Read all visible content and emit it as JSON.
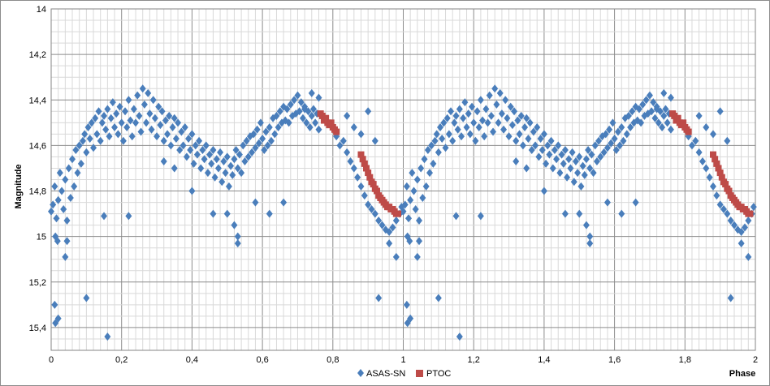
{
  "chart_data": {
    "type": "scatter",
    "title": "",
    "xlabel": "Phase",
    "ylabel": "Magnitude",
    "xlim": [
      0,
      2
    ],
    "ylim": [
      14,
      15.5
    ],
    "y_inverted": true,
    "grid": true,
    "x_ticks": [
      0,
      0.2,
      0.4,
      0.6,
      0.8,
      1,
      1.2,
      1.4,
      1.6,
      1.8,
      2
    ],
    "x_tick_labels": [
      "0",
      "0,2",
      "0,4",
      "0,6",
      "0,8",
      "1",
      "1,2",
      "1,4",
      "1,6",
      "1,8",
      "2"
    ],
    "y_ticks": [
      14,
      14.2,
      14.4,
      14.6,
      14.8,
      15,
      15.2,
      15.4
    ],
    "y_tick_labels": [
      "14",
      "14,2",
      "14,4",
      "14,6",
      "14,8",
      "15",
      "15,2",
      "15,4"
    ],
    "legend_position": "bottom-right",
    "series": [
      {
        "name": "ASAS-SN",
        "marker": "diamond",
        "color": "#4a7ebb",
        "points": [
          [
            0.0,
            14.89
          ],
          [
            0.005,
            14.86
          ],
          [
            0.01,
            14.78
          ],
          [
            0.012,
            15.0
          ],
          [
            0.015,
            14.92
          ],
          [
            0.018,
            15.02
          ],
          [
            0.02,
            14.84
          ],
          [
            0.025,
            14.72
          ],
          [
            0.03,
            14.8
          ],
          [
            0.035,
            14.88
          ],
          [
            0.04,
            14.75
          ],
          [
            0.045,
            14.93
          ],
          [
            0.05,
            14.7
          ],
          [
            0.055,
            14.83
          ],
          [
            0.06,
            14.66
          ],
          [
            0.065,
            14.78
          ],
          [
            0.07,
            14.62
          ],
          [
            0.075,
            14.72
          ],
          [
            0.08,
            14.6
          ],
          [
            0.085,
            14.68
          ],
          [
            0.09,
            14.58
          ],
          [
            0.095,
            14.55
          ],
          [
            0.1,
            14.63
          ],
          [
            0.105,
            14.52
          ],
          [
            0.11,
            14.57
          ],
          [
            0.115,
            14.5
          ],
          [
            0.12,
            14.61
          ],
          [
            0.125,
            14.48
          ],
          [
            0.13,
            14.55
          ],
          [
            0.135,
            14.45
          ],
          [
            0.14,
            14.58
          ],
          [
            0.145,
            14.5
          ],
          [
            0.15,
            14.47
          ],
          [
            0.155,
            14.53
          ],
          [
            0.16,
            14.44
          ],
          [
            0.165,
            14.56
          ],
          [
            0.17,
            14.48
          ],
          [
            0.175,
            14.41
          ],
          [
            0.18,
            14.52
          ],
          [
            0.185,
            14.46
          ],
          [
            0.19,
            14.55
          ],
          [
            0.195,
            14.43
          ],
          [
            0.2,
            14.5
          ],
          [
            0.205,
            14.58
          ],
          [
            0.21,
            14.45
          ],
          [
            0.215,
            14.52
          ],
          [
            0.22,
            14.4
          ],
          [
            0.225,
            14.49
          ],
          [
            0.23,
            14.56
          ],
          [
            0.235,
            14.44
          ],
          [
            0.24,
            14.5
          ],
          [
            0.245,
            14.38
          ],
          [
            0.25,
            14.47
          ],
          [
            0.255,
            14.54
          ],
          [
            0.26,
            14.35
          ],
          [
            0.265,
            14.42
          ],
          [
            0.27,
            14.5
          ],
          [
            0.275,
            14.37
          ],
          [
            0.28,
            14.46
          ],
          [
            0.285,
            14.53
          ],
          [
            0.29,
            14.4
          ],
          [
            0.295,
            14.48
          ],
          [
            0.3,
            14.56
          ],
          [
            0.305,
            14.43
          ],
          [
            0.31,
            14.51
          ],
          [
            0.315,
            14.45
          ],
          [
            0.32,
            14.58
          ],
          [
            0.325,
            14.49
          ],
          [
            0.33,
            14.55
          ],
          [
            0.335,
            14.47
          ],
          [
            0.34,
            14.6
          ],
          [
            0.345,
            14.52
          ],
          [
            0.35,
            14.48
          ],
          [
            0.355,
            14.57
          ],
          [
            0.36,
            14.5
          ],
          [
            0.365,
            14.62
          ],
          [
            0.37,
            14.54
          ],
          [
            0.375,
            14.6
          ],
          [
            0.38,
            14.52
          ],
          [
            0.385,
            14.65
          ],
          [
            0.39,
            14.57
          ],
          [
            0.395,
            14.62
          ],
          [
            0.4,
            14.55
          ],
          [
            0.405,
            14.68
          ],
          [
            0.41,
            14.6
          ],
          [
            0.415,
            14.64
          ],
          [
            0.42,
            14.58
          ],
          [
            0.425,
            14.7
          ],
          [
            0.43,
            14.62
          ],
          [
            0.435,
            14.66
          ],
          [
            0.44,
            14.6
          ],
          [
            0.445,
            14.72
          ],
          [
            0.45,
            14.64
          ],
          [
            0.455,
            14.68
          ],
          [
            0.46,
            14.62
          ],
          [
            0.465,
            14.74
          ],
          [
            0.47,
            14.66
          ],
          [
            0.475,
            14.7
          ],
          [
            0.48,
            14.63
          ],
          [
            0.485,
            14.76
          ],
          [
            0.49,
            14.67
          ],
          [
            0.495,
            14.72
          ],
          [
            0.5,
            14.65
          ],
          [
            0.505,
            14.78
          ],
          [
            0.51,
            14.69
          ],
          [
            0.515,
            14.73
          ],
          [
            0.52,
            14.66
          ],
          [
            0.525,
            14.62
          ],
          [
            0.53,
            14.7
          ],
          [
            0.535,
            14.64
          ],
          [
            0.54,
            14.72
          ],
          [
            0.545,
            14.6
          ],
          [
            0.55,
            14.67
          ],
          [
            0.555,
            14.58
          ],
          [
            0.56,
            14.65
          ],
          [
            0.565,
            14.56
          ],
          [
            0.57,
            14.63
          ],
          [
            0.575,
            14.55
          ],
          [
            0.58,
            14.61
          ],
          [
            0.585,
            14.53
          ],
          [
            0.59,
            14.59
          ],
          [
            0.595,
            14.5
          ],
          [
            0.6,
            14.57
          ],
          [
            0.605,
            14.62
          ],
          [
            0.61,
            14.54
          ],
          [
            0.615,
            14.6
          ],
          [
            0.62,
            14.52
          ],
          [
            0.625,
            14.58
          ],
          [
            0.63,
            14.48
          ],
          [
            0.635,
            14.55
          ],
          [
            0.64,
            14.47
          ],
          [
            0.645,
            14.52
          ],
          [
            0.65,
            14.45
          ],
          [
            0.655,
            14.5
          ],
          [
            0.66,
            14.43
          ],
          [
            0.665,
            14.49
          ],
          [
            0.67,
            14.44
          ],
          [
            0.675,
            14.5
          ],
          [
            0.68,
            14.42
          ],
          [
            0.685,
            14.47
          ],
          [
            0.69,
            14.4
          ],
          [
            0.695,
            14.46
          ],
          [
            0.7,
            14.38
          ],
          [
            0.705,
            14.45
          ],
          [
            0.71,
            14.41
          ],
          [
            0.715,
            14.48
          ],
          [
            0.72,
            14.43
          ],
          [
            0.725,
            14.5
          ],
          [
            0.73,
            14.45
          ],
          [
            0.735,
            14.52
          ],
          [
            0.74,
            14.47
          ],
          [
            0.745,
            14.44
          ],
          [
            0.75,
            14.5
          ],
          [
            0.755,
            14.46
          ],
          [
            0.76,
            14.53
          ],
          [
            0.8,
            14.52
          ],
          [
            0.81,
            14.56
          ],
          [
            0.82,
            14.6
          ],
          [
            0.83,
            14.58
          ],
          [
            0.84,
            14.63
          ],
          [
            0.85,
            14.67
          ],
          [
            0.86,
            14.7
          ],
          [
            0.87,
            14.74
          ],
          [
            0.88,
            14.78
          ],
          [
            0.89,
            14.82
          ],
          [
            0.9,
            14.86
          ],
          [
            0.91,
            14.88
          ],
          [
            0.92,
            14.9
          ],
          [
            0.93,
            14.93
          ],
          [
            0.94,
            14.95
          ],
          [
            0.95,
            14.97
          ],
          [
            0.96,
            14.98
          ],
          [
            0.97,
            14.96
          ],
          [
            0.98,
            14.93
          ],
          [
            0.99,
            14.9
          ],
          [
            0.995,
            14.87
          ],
          [
            0.01,
            15.3
          ],
          [
            0.012,
            15.38
          ],
          [
            0.02,
            15.36
          ],
          [
            0.04,
            15.09
          ],
          [
            0.045,
            15.02
          ],
          [
            0.1,
            15.27
          ],
          [
            0.16,
            15.44
          ],
          [
            0.15,
            14.91
          ],
          [
            0.22,
            14.91
          ],
          [
            0.32,
            14.67
          ],
          [
            0.35,
            14.7
          ],
          [
            0.4,
            14.8
          ],
          [
            0.46,
            14.9
          ],
          [
            0.52,
            14.95
          ],
          [
            0.53,
            15.03
          ],
          [
            0.53,
            15.0
          ],
          [
            0.58,
            14.85
          ],
          [
            0.62,
            14.9
          ],
          [
            0.66,
            14.85
          ],
          [
            0.74,
            14.37
          ],
          [
            0.5,
            14.9
          ],
          [
            0.9,
            14.45
          ],
          [
            0.92,
            14.58
          ],
          [
            0.93,
            15.27
          ],
          [
            0.96,
            15.03
          ],
          [
            0.98,
            15.09
          ],
          [
            0.72,
            14.44
          ],
          [
            0.76,
            14.39
          ],
          [
            0.84,
            14.47
          ],
          [
            0.86,
            14.52
          ],
          [
            0.88,
            14.55
          ]
        ],
        "mirror_offset": 1
      },
      {
        "name": "PTOC",
        "marker": "square",
        "color": "#be4b48",
        "points": [
          [
            0.765,
            14.46
          ],
          [
            0.77,
            14.47
          ],
          [
            0.775,
            14.49
          ],
          [
            0.78,
            14.48
          ],
          [
            0.785,
            14.5
          ],
          [
            0.79,
            14.51
          ],
          [
            0.795,
            14.5
          ],
          [
            0.8,
            14.52
          ],
          [
            0.805,
            14.53
          ],
          [
            0.81,
            14.54
          ],
          [
            0.88,
            14.64
          ],
          [
            0.885,
            14.66
          ],
          [
            0.89,
            14.68
          ],
          [
            0.895,
            14.7
          ],
          [
            0.9,
            14.72
          ],
          [
            0.905,
            14.74
          ],
          [
            0.91,
            14.76
          ],
          [
            0.915,
            14.77
          ],
          [
            0.92,
            14.79
          ],
          [
            0.925,
            14.8
          ],
          [
            0.93,
            14.82
          ],
          [
            0.935,
            14.83
          ],
          [
            0.94,
            14.84
          ],
          [
            0.945,
            14.85
          ],
          [
            0.95,
            14.86
          ],
          [
            0.955,
            14.87
          ],
          [
            0.96,
            14.87
          ],
          [
            0.965,
            14.88
          ],
          [
            0.97,
            14.88
          ],
          [
            0.975,
            14.89
          ],
          [
            0.98,
            14.9
          ],
          [
            0.985,
            14.9
          ]
        ],
        "mirror_offset": 1
      }
    ]
  }
}
